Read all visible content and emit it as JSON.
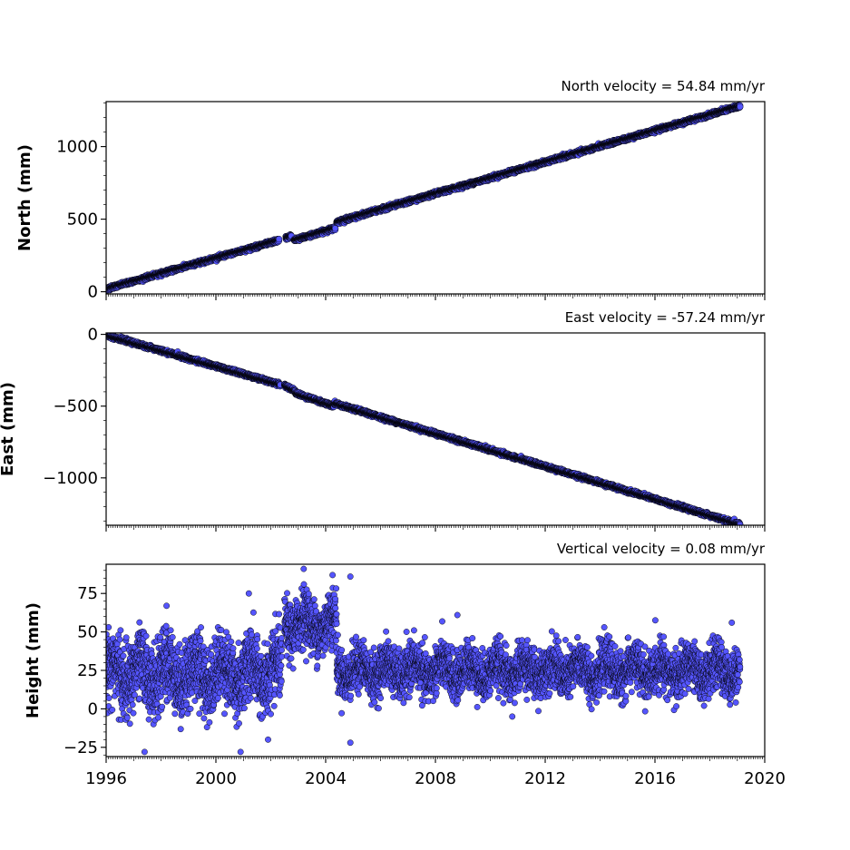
{
  "chart_data": [
    {
      "type": "scatter",
      "panel": "north",
      "title": "North velocity = 54.84 mm/yr",
      "xlabel": "",
      "ylabel": "North (mm)",
      "xlim": [
        1996,
        2020
      ],
      "ylim": [
        -15,
        1310
      ],
      "yticks": [
        0,
        500,
        1000
      ],
      "ytick_labels": [
        "0",
        "500",
        "1000"
      ],
      "grid": false,
      "point_color": "#5555ff",
      "edge_color": "#000000",
      "series": [
        {
          "segments": [
            {
              "x": [
                1996.0,
                2002.3
              ],
              "y": [
                20,
                355
              ]
            },
            {
              "x": [
                2002.55,
                2002.75
              ],
              "y": [
                370,
                385
              ]
            },
            {
              "x": [
                2002.85,
                2004.35
              ],
              "y": [
                355,
                440
              ]
            },
            {
              "x": [
                2004.4,
                2019.1
              ],
              "y": [
                480,
                1280
              ]
            }
          ],
          "scatter_mm": 6
        }
      ]
    },
    {
      "type": "scatter",
      "panel": "east",
      "title": "East velocity = -57.24 mm/yr",
      "xlabel": "",
      "ylabel": "East (mm)",
      "xlim": [
        1996,
        2020
      ],
      "ylim": [
        -1330,
        10
      ],
      "yticks": [
        0,
        -500,
        -1000
      ],
      "ytick_labels": [
        "0",
        "−500",
        "−1000"
      ],
      "grid": false,
      "point_color": "#5555ff",
      "edge_color": "#000000",
      "series": [
        {
          "segments": [
            {
              "x": [
                1996.0,
                2002.35
              ],
              "y": [
                -5,
                -350
              ]
            },
            {
              "x": [
                2002.5,
                2002.9
              ],
              "y": [
                -355,
                -395
              ]
            },
            {
              "x": [
                2002.9,
                2004.3
              ],
              "y": [
                -410,
                -500
              ]
            },
            {
              "x": [
                2004.3,
                2019.1
              ],
              "y": [
                -480,
                -1325
              ]
            }
          ],
          "scatter_mm": 6
        }
      ]
    },
    {
      "type": "scatter",
      "panel": "vertical",
      "title": "Vertical velocity = 0.08 mm/yr",
      "xlabel": "",
      "ylabel": "Height (mm)",
      "xlim": [
        1996,
        2020
      ],
      "ylim": [
        -31,
        94
      ],
      "yticks": [
        -25,
        0,
        25,
        50,
        75
      ],
      "ytick_labels": [
        "−25",
        "0",
        "25",
        "50",
        "75"
      ],
      "xticks": [
        1996,
        2000,
        2004,
        2008,
        2012,
        2016,
        2020
      ],
      "xtick_labels": [
        "1996",
        "2000",
        "2004",
        "2008",
        "2012",
        "2016",
        "2020"
      ],
      "grid": false,
      "point_color": "#5555ff",
      "edge_color": "#000000",
      "series": [
        {
          "segments": [
            {
              "x": [
                1996.0,
                2002.4
              ],
              "y_mean": 23,
              "y_spread": 15
            },
            {
              "x": [
                2002.5,
                2004.4
              ],
              "y_mean": 55,
              "y_spread": 12
            },
            {
              "x": [
                2004.4,
                2019.1
              ],
              "y_mean": 25,
              "y_spread": 10
            }
          ],
          "outliers": [
            {
              "x": 2003.2,
              "y": 91
            },
            {
              "x": 2004.25,
              "y": 87
            },
            {
              "x": 2004.9,
              "y": 86
            },
            {
              "x": 1998.2,
              "y": 67
            },
            {
              "x": 2001.2,
              "y": 75
            },
            {
              "x": 2008.8,
              "y": 61
            },
            {
              "x": 2004.9,
              "y": -22
            },
            {
              "x": 2000.9,
              "y": -28
            },
            {
              "x": 1997.4,
              "y": -28
            },
            {
              "x": 2010.8,
              "y": -5
            },
            {
              "x": 2001.9,
              "y": -20
            },
            {
              "x": 2018.8,
              "y": 56
            }
          ]
        }
      ]
    }
  ]
}
